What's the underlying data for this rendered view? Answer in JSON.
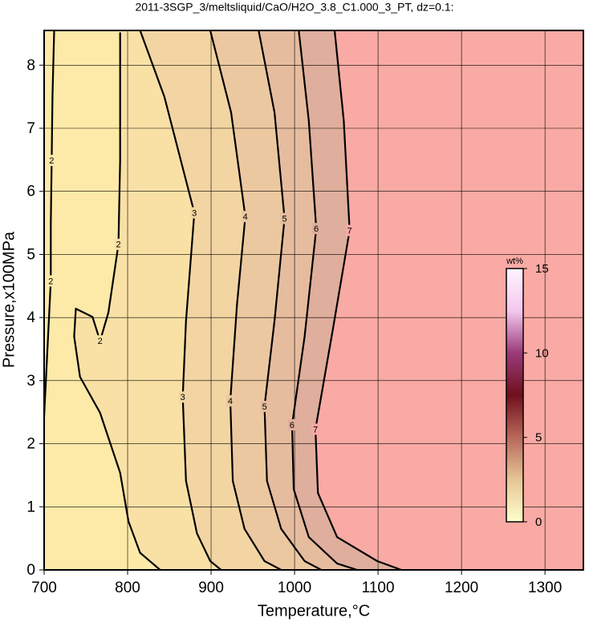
{
  "chart_data": {
    "type": "contour",
    "title": "2011-3SGP_3/meltsliquid/CaO/H2O_3.8_C1.000_3_PT, dz=0.1:",
    "xlabel": "Temperature,°C",
    "ylabel": "Pressure,x100MPa",
    "xlim": [
      700,
      1346
    ],
    "ylim": [
      0,
      8.55
    ],
    "xticks": [
      700,
      800,
      900,
      1000,
      1100,
      1200,
      1300
    ],
    "yticks": [
      0,
      1,
      2,
      3,
      4,
      5,
      6,
      7,
      8
    ],
    "grid": true,
    "background": "#fde9a8",
    "contours": [
      {
        "level": 2,
        "x": [
          712,
          710,
          709,
          708,
          708,
          700
        ],
        "y": [
          8.55,
          7.5,
          6.49,
          5.47,
          4.58,
          2.43
        ]
      },
      {
        "level": 2,
        "color": "#f9e1a6",
        "x": [
          791,
          791,
          789,
          777,
          767,
          758,
          738,
          736,
          743,
          767,
          791,
          801,
          815,
          839
        ],
        "y": [
          8.52,
          6.49,
          5.16,
          4.08,
          3.63,
          4.01,
          4.14,
          3.7,
          3.06,
          2.49,
          1.54,
          0.77,
          0.27,
          0
        ]
      },
      {
        "level": 3,
        "color": "#f2d5a2",
        "x": [
          815,
          844,
          880,
          870,
          866,
          870,
          883,
          899,
          912
        ],
        "y": [
          8.55,
          7.5,
          5.66,
          3.95,
          2.74,
          1.41,
          0.58,
          0.14,
          0
        ]
      },
      {
        "level": 4,
        "color": "#ecc8a0",
        "x": [
          899,
          924,
          941,
          931,
          923,
          926,
          940,
          964,
          984
        ],
        "y": [
          8.55,
          7.25,
          5.6,
          4.2,
          2.68,
          1.41,
          0.65,
          0.14,
          0
        ]
      },
      {
        "level": 5,
        "color": "#e6bc9f",
        "x": [
          957,
          976,
          988,
          976,
          964,
          967,
          984,
          1012,
          1032
        ],
        "y": [
          8.55,
          7.25,
          5.57,
          3.95,
          2.59,
          1.41,
          0.65,
          0.14,
          0
        ]
      },
      {
        "level": 6,
        "color": "#dfae9c",
        "x": [
          1005,
          1017,
          1026,
          1012,
          997,
          999,
          1017,
          1051,
          1075
        ],
        "y": [
          8.55,
          7.12,
          5.41,
          3.7,
          2.3,
          1.28,
          0.52,
          0.1,
          0
        ]
      },
      {
        "level": 7,
        "color": "#f9aaa4",
        "x": [
          1048,
          1059,
          1066,
          1046,
          1025,
          1028,
          1051,
          1099,
          1128
        ],
        "y": [
          8.55,
          7.12,
          5.38,
          3.82,
          2.23,
          1.22,
          0.52,
          0.14,
          0
        ]
      }
    ],
    "colorbar": {
      "label": "wt%",
      "lim": [
        0,
        15
      ],
      "ticks": [
        0,
        5,
        10,
        15
      ],
      "colors": [
        "#ffffcc",
        "#e6c596",
        "#b8675a",
        "#70101c",
        "#9a3a7a",
        "#f4c8ee",
        "#fff4ff"
      ]
    }
  }
}
